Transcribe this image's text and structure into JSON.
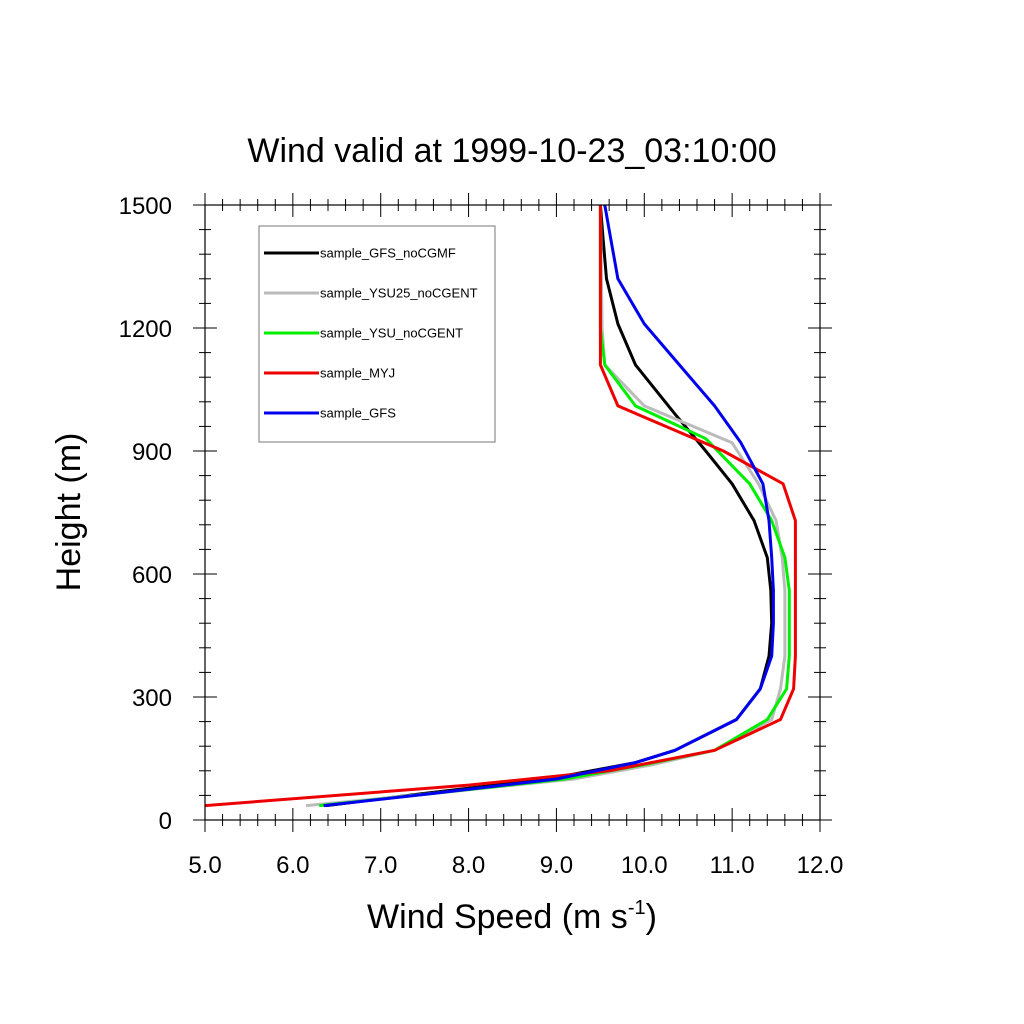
{
  "chart_data": {
    "type": "line",
    "title": "Wind valid at 1999-10-23_03:10:00",
    "xlabel": "Wind Speed (m s",
    "xlabel_sup": "-1",
    "xlabel_end": ")",
    "ylabel": "Height (m)",
    "xlim": [
      5.0,
      12.0
    ],
    "ylim": [
      0,
      1500
    ],
    "xticks": [
      "5.0",
      "6.0",
      "7.0",
      "8.0",
      "9.0",
      "10.0",
      "11.0",
      "12.0"
    ],
    "yticks": [
      "0",
      "300",
      "600",
      "900",
      "1200",
      "1500"
    ],
    "grid": false,
    "legend_position": "top-left",
    "series": [
      {
        "name": "sample_GFS_noCGMF",
        "color": "#000000",
        "points": [
          [
            6.38,
            35
          ],
          [
            7.5,
            65
          ],
          [
            8.9,
            100
          ],
          [
            9.9,
            140
          ],
          [
            10.35,
            170
          ],
          [
            11.05,
            245
          ],
          [
            11.32,
            320
          ],
          [
            11.42,
            400
          ],
          [
            11.45,
            480
          ],
          [
            11.44,
            560
          ],
          [
            11.4,
            640
          ],
          [
            11.25,
            730
          ],
          [
            11.0,
            820
          ],
          [
            10.7,
            900
          ],
          [
            10.35,
            990
          ],
          [
            9.9,
            1110
          ],
          [
            9.7,
            1210
          ],
          [
            9.57,
            1320
          ],
          [
            9.53,
            1420
          ],
          [
            9.5,
            1500
          ]
        ]
      },
      {
        "name": "sample_YSU25_noCGENT",
        "color": "#bbbbbb",
        "points": [
          [
            6.15,
            35
          ],
          [
            7.6,
            65
          ],
          [
            9.2,
            100
          ],
          [
            10.1,
            135
          ],
          [
            10.8,
            170
          ],
          [
            11.45,
            245
          ],
          [
            11.55,
            320
          ],
          [
            11.6,
            400
          ],
          [
            11.6,
            480
          ],
          [
            11.6,
            560
          ],
          [
            11.57,
            640
          ],
          [
            11.5,
            730
          ],
          [
            11.3,
            820
          ],
          [
            11.0,
            920
          ],
          [
            10.0,
            1010
          ],
          [
            9.55,
            1110
          ],
          [
            9.52,
            1200
          ],
          [
            9.5,
            1500
          ]
        ]
      },
      {
        "name": "sample_YSU_noCGENT",
        "color": "#00ee00",
        "points": [
          [
            6.3,
            35
          ],
          [
            7.6,
            65
          ],
          [
            9.1,
            100
          ],
          [
            10.0,
            135
          ],
          [
            10.8,
            170
          ],
          [
            11.4,
            245
          ],
          [
            11.62,
            320
          ],
          [
            11.65,
            400
          ],
          [
            11.65,
            480
          ],
          [
            11.65,
            560
          ],
          [
            11.6,
            640
          ],
          [
            11.45,
            730
          ],
          [
            11.2,
            820
          ],
          [
            10.7,
            930
          ],
          [
            9.9,
            1010
          ],
          [
            9.55,
            1110
          ],
          [
            9.5,
            1200
          ],
          [
            9.5,
            1500
          ]
        ]
      },
      {
        "name": "sample_MYJ",
        "color": "#ee0000",
        "points": [
          [
            5.0,
            35
          ],
          [
            8.0,
            85
          ],
          [
            9.6,
            120
          ],
          [
            10.8,
            170
          ],
          [
            11.55,
            245
          ],
          [
            11.7,
            320
          ],
          [
            11.72,
            400
          ],
          [
            11.72,
            480
          ],
          [
            11.72,
            560
          ],
          [
            11.72,
            640
          ],
          [
            11.72,
            730
          ],
          [
            11.58,
            820
          ],
          [
            10.9,
            900
          ],
          [
            9.7,
            1010
          ],
          [
            9.5,
            1110
          ],
          [
            9.5,
            1500
          ]
        ]
      },
      {
        "name": "sample_GFS",
        "color": "#0000ee",
        "points": [
          [
            6.35,
            35
          ],
          [
            7.6,
            65
          ],
          [
            9.0,
            100
          ],
          [
            9.9,
            140
          ],
          [
            10.35,
            170
          ],
          [
            11.05,
            245
          ],
          [
            11.32,
            320
          ],
          [
            11.45,
            400
          ],
          [
            11.47,
            480
          ],
          [
            11.47,
            560
          ],
          [
            11.45,
            640
          ],
          [
            11.42,
            730
          ],
          [
            11.35,
            820
          ],
          [
            11.1,
            920
          ],
          [
            10.8,
            1010
          ],
          [
            10.4,
            1110
          ],
          [
            10.0,
            1210
          ],
          [
            9.7,
            1320
          ],
          [
            9.6,
            1440
          ],
          [
            9.55,
            1500
          ]
        ]
      }
    ]
  }
}
